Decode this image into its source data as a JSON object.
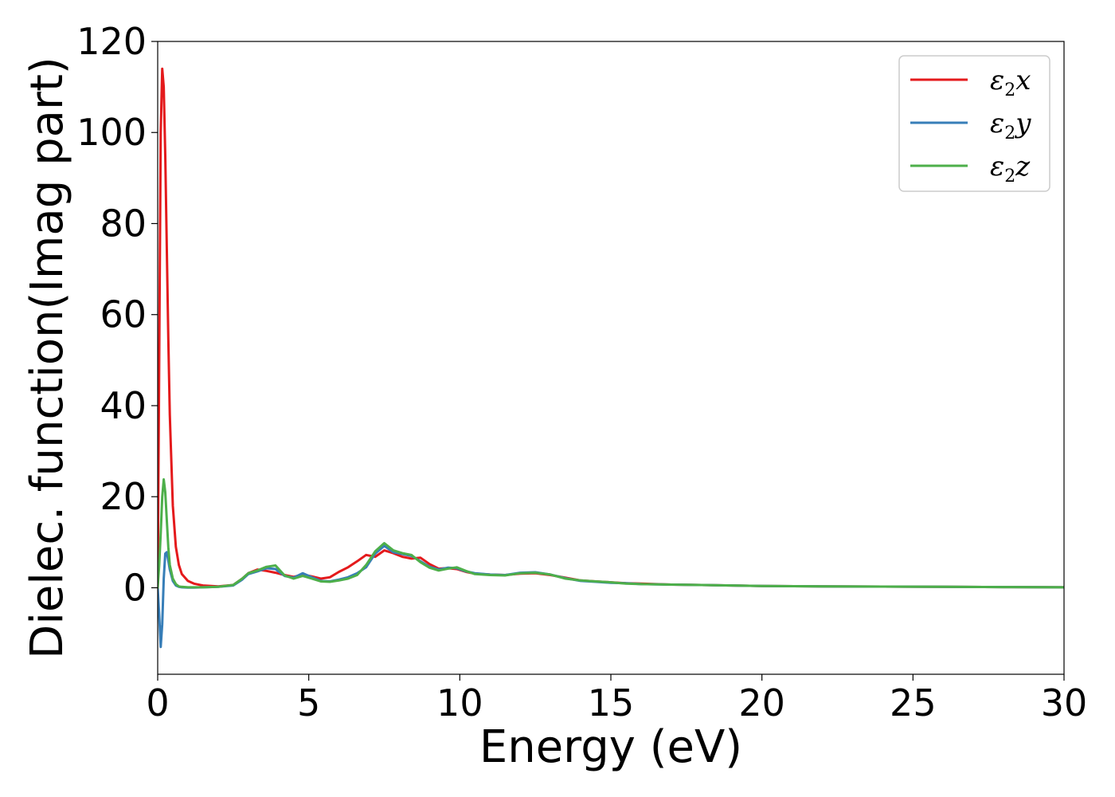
{
  "chart_data": {
    "type": "line",
    "xlabel": "Energy (eV)",
    "ylabel": "Dielec. function(Imag part)",
    "xlim": [
      0,
      30
    ],
    "ylim": [
      -19,
      120
    ],
    "xticks": [
      "0",
      "5",
      "10",
      "15",
      "20",
      "25",
      "30"
    ],
    "yticks": [
      "0",
      "20",
      "40",
      "60",
      "80",
      "100",
      "120"
    ],
    "grid": false,
    "legend_position": "top-right",
    "series": [
      {
        "name": "ε2x",
        "legend_base": "ε",
        "legend_sub": "2",
        "legend_var": "x",
        "color": "#e41a1c",
        "x": [
          0,
          0.05,
          0.1,
          0.15,
          0.2,
          0.25,
          0.3,
          0.35,
          0.4,
          0.5,
          0.6,
          0.7,
          0.8,
          1.0,
          1.2,
          1.5,
          2.0,
          2.5,
          2.8,
          3.0,
          3.3,
          3.6,
          3.9,
          4.2,
          4.5,
          4.8,
          5.1,
          5.4,
          5.7,
          6.0,
          6.3,
          6.6,
          6.9,
          7.2,
          7.5,
          7.8,
          8.1,
          8.4,
          8.7,
          9.0,
          9.3,
          9.6,
          9.9,
          10.2,
          10.5,
          11.0,
          11.5,
          12.0,
          12.5,
          13.0,
          13.5,
          14.0,
          14.5,
          15.0,
          15.5,
          16.0,
          17.0,
          18.0,
          19.0,
          20.0,
          22.0,
          24.0,
          26.0,
          28.0,
          30.0
        ],
        "y": [
          0,
          50,
          100,
          114,
          110,
          95,
          75,
          55,
          38,
          18,
          9,
          5,
          3,
          1.5,
          0.9,
          0.5,
          0.3,
          0.6,
          2.0,
          3.2,
          4.0,
          3.7,
          3.3,
          2.8,
          2.4,
          2.9,
          2.5,
          2.0,
          2.3,
          3.5,
          4.5,
          5.8,
          7.2,
          6.8,
          8.2,
          7.6,
          6.8,
          6.4,
          6.6,
          5.2,
          4.2,
          4.3,
          4.1,
          3.5,
          3.1,
          2.9,
          2.8,
          3.1,
          3.2,
          2.8,
          2.2,
          1.6,
          1.4,
          1.2,
          1.0,
          0.9,
          0.7,
          0.6,
          0.5,
          0.4,
          0.3,
          0.25,
          0.2,
          0.15,
          0.1
        ]
      },
      {
        "name": "ε2y",
        "legend_base": "ε",
        "legend_sub": "2",
        "legend_var": "y",
        "color": "#377eb8",
        "x": [
          0,
          0.05,
          0.1,
          0.15,
          0.2,
          0.25,
          0.3,
          0.35,
          0.4,
          0.5,
          0.6,
          0.7,
          0.8,
          1.0,
          1.2,
          1.5,
          2.0,
          2.5,
          2.8,
          3.0,
          3.3,
          3.6,
          3.9,
          4.2,
          4.5,
          4.8,
          5.1,
          5.4,
          5.7,
          6.0,
          6.3,
          6.6,
          6.9,
          7.2,
          7.5,
          7.8,
          8.1,
          8.4,
          8.7,
          9.0,
          9.3,
          9.6,
          9.9,
          10.2,
          10.5,
          11.0,
          11.5,
          12.0,
          12.5,
          13.0,
          13.5,
          14.0,
          14.5,
          15.0,
          15.5,
          16.0,
          17.0,
          18.0,
          19.0,
          20.0,
          22.0,
          24.0,
          26.0,
          28.0,
          30.0
        ],
        "y": [
          0,
          -6,
          -13,
          -8,
          2,
          7.5,
          7.8,
          6,
          4,
          1.5,
          0.5,
          0.2,
          0.1,
          0.05,
          0.05,
          0.1,
          0.2,
          0.5,
          1.8,
          3.0,
          3.6,
          4.3,
          4.1,
          2.6,
          2.2,
          3.2,
          2.3,
          1.5,
          1.4,
          1.8,
          2.3,
          3.2,
          4.5,
          7.5,
          9.2,
          7.8,
          7.4,
          7.0,
          5.8,
          4.6,
          4.0,
          4.4,
          4.3,
          3.6,
          3.2,
          2.9,
          2.8,
          3.3,
          3.4,
          2.9,
          2.1,
          1.5,
          1.3,
          1.1,
          1.0,
          0.8,
          0.7,
          0.6,
          0.5,
          0.4,
          0.3,
          0.25,
          0.2,
          0.15,
          0.1
        ]
      },
      {
        "name": "ε2z",
        "legend_base": "ε",
        "legend_sub": "2",
        "legend_var": "z",
        "color": "#4daf4a",
        "x": [
          0,
          0.05,
          0.1,
          0.15,
          0.2,
          0.25,
          0.3,
          0.35,
          0.4,
          0.5,
          0.6,
          0.7,
          0.8,
          1.0,
          1.2,
          1.5,
          2.0,
          2.5,
          2.8,
          3.0,
          3.3,
          3.6,
          3.9,
          4.2,
          4.5,
          4.8,
          5.1,
          5.4,
          5.7,
          6.0,
          6.3,
          6.6,
          6.9,
          7.2,
          7.5,
          7.8,
          8.1,
          8.4,
          8.7,
          9.0,
          9.3,
          9.6,
          9.9,
          10.2,
          10.5,
          11.0,
          11.5,
          12.0,
          12.5,
          13.0,
          13.5,
          14.0,
          14.5,
          15.0,
          15.5,
          16.0,
          17.0,
          18.0,
          19.0,
          20.0,
          22.0,
          24.0,
          26.0,
          28.0,
          30.0
        ],
        "y": [
          0,
          5,
          12,
          20,
          23.8,
          21,
          15,
          9,
          5,
          2,
          0.8,
          0.3,
          0.2,
          0.1,
          0.1,
          0.1,
          0.2,
          0.6,
          2.0,
          3.2,
          3.8,
          4.6,
          4.9,
          2.7,
          2.0,
          2.6,
          2.0,
          1.4,
          1.3,
          1.6,
          2.0,
          2.8,
          5.0,
          8.0,
          9.8,
          8.2,
          7.6,
          7.2,
          5.6,
          4.4,
          3.8,
          4.2,
          4.5,
          3.7,
          3.0,
          2.8,
          2.7,
          3.2,
          3.3,
          2.9,
          2.0,
          1.6,
          1.4,
          1.2,
          0.9,
          0.8,
          0.7,
          0.6,
          0.5,
          0.4,
          0.3,
          0.25,
          0.2,
          0.15,
          0.1
        ]
      }
    ]
  }
}
